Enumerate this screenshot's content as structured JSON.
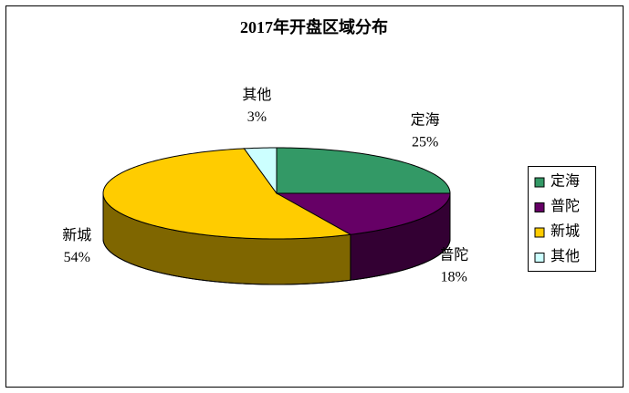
{
  "chart_data": {
    "type": "pie3d",
    "title": "2017年开盘区域分布",
    "categories": [
      "定海",
      "普陀",
      "新城",
      "其他"
    ],
    "values": [
      25,
      18,
      54,
      3
    ],
    "value_labels": [
      "25%",
      "18%",
      "54%",
      "3%"
    ],
    "colors": [
      "#339966",
      "#660066",
      "#ffcc00",
      "#ccffff"
    ],
    "legend": "right"
  }
}
